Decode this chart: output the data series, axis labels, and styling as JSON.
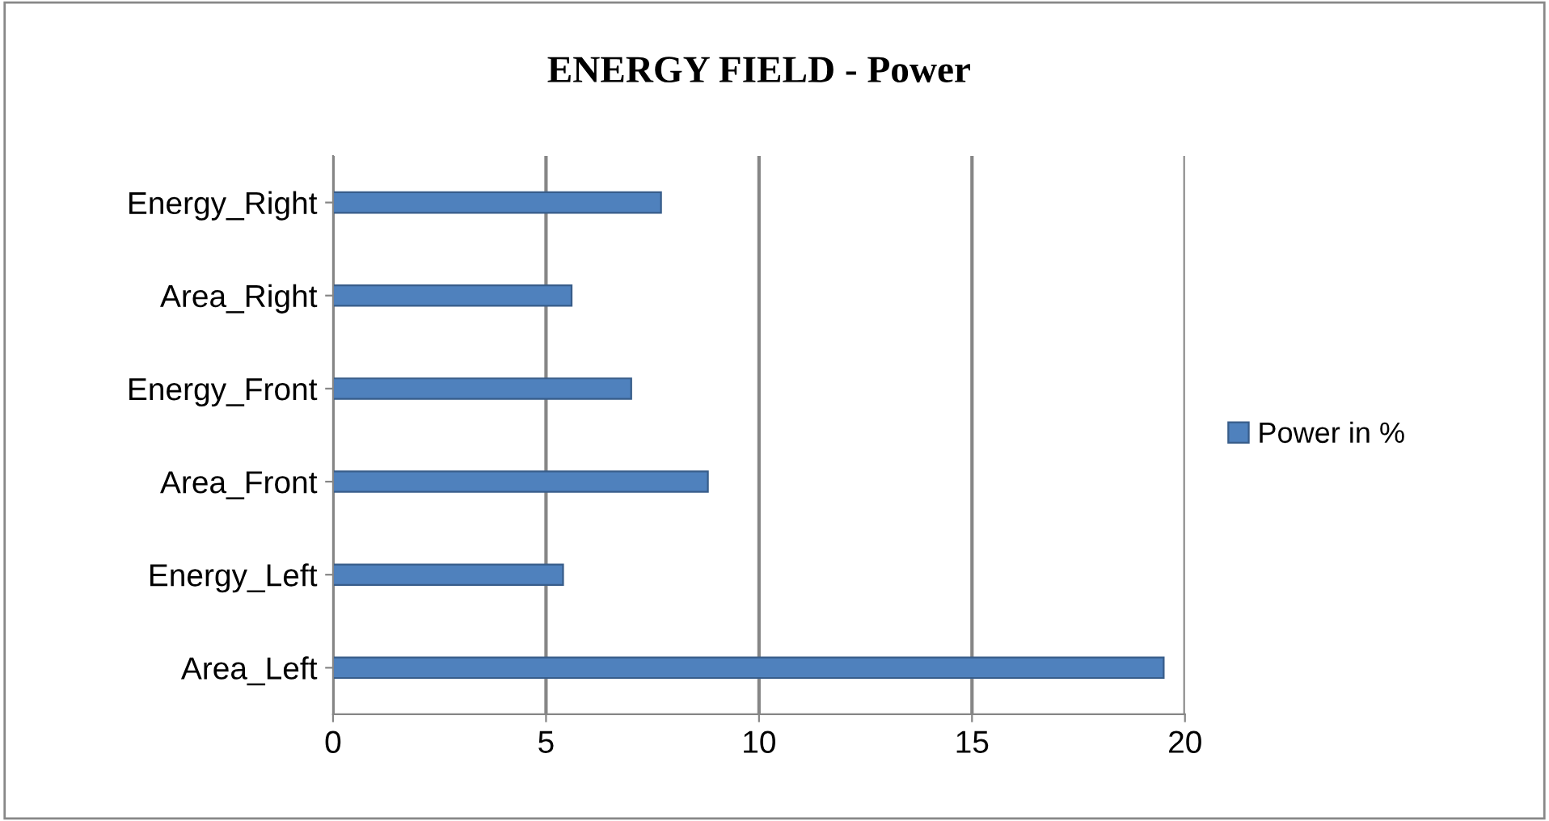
{
  "chart_data": {
    "type": "bar",
    "orientation": "horizontal",
    "title": "ENERGY FIELD - Power",
    "categories": [
      "Energy_Right",
      "Area_Right",
      "Energy_Front",
      "Area_Front",
      "Energy_Left",
      "Area_Left"
    ],
    "series": [
      {
        "name": "Power in %",
        "color": "#4f81bd",
        "values": [
          7.7,
          5.6,
          7.0,
          8.8,
          5.4,
          19.5
        ]
      }
    ],
    "xlim": [
      0,
      20
    ],
    "xticks": [
      0,
      5,
      10,
      15,
      20
    ],
    "grid": "x",
    "legend": "right"
  }
}
